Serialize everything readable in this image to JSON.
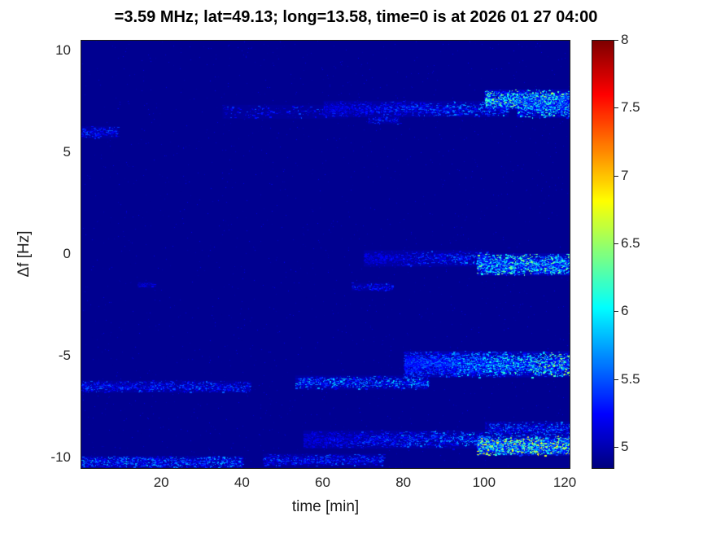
{
  "chart_data": {
    "type": "heatmap",
    "title": "=3.59 MHz;  lat=49.13; long=13.58, time=0 is at 2026 01 27 04:00",
    "xlabel": "time [min]",
    "ylabel": "Δf [Hz]",
    "xlim": [
      0,
      121
    ],
    "ylim": [
      -10.5,
      10.5
    ],
    "xticks": [
      20,
      40,
      60,
      80,
      100,
      120
    ],
    "yticks": [
      10,
      5,
      0,
      -5,
      -10
    ],
    "colorbar": {
      "range": [
        4.85,
        8
      ],
      "ticks": [
        5,
        5.5,
        6,
        6.5,
        7,
        7.5,
        8
      ],
      "colormap": "jet",
      "position": "right"
    },
    "grid": false,
    "legend": false,
    "background_value": 4.9,
    "noise": {
      "count": 2200,
      "vmin": 4.88,
      "vmax": 5.18
    },
    "bands": [
      {
        "y": 6.0,
        "spread": 0.3,
        "x0": 0,
        "x1": 9,
        "density": 30,
        "vmin": 5.0,
        "vmax": 5.55,
        "ramp": false
      },
      {
        "y": 7.0,
        "spread": 0.35,
        "x0": 35,
        "x1": 66,
        "density": 8,
        "vmin": 4.95,
        "vmax": 5.5,
        "ramp": false
      },
      {
        "y": 7.15,
        "spread": 0.4,
        "x0": 60,
        "x1": 106,
        "density": 28,
        "vmin": 5.05,
        "vmax": 6.0,
        "ramp": true
      },
      {
        "y": 6.6,
        "spread": 0.2,
        "x0": 71,
        "x1": 79,
        "density": 12,
        "vmin": 5.0,
        "vmax": 5.5,
        "ramp": false
      },
      {
        "y": 7.6,
        "spread": 0.5,
        "x0": 100,
        "x1": 121,
        "density": 85,
        "vmin": 5.2,
        "vmax": 6.6,
        "ramp": false
      },
      {
        "y": 7.2,
        "spread": 0.5,
        "x0": 108,
        "x1": 121,
        "density": 55,
        "vmin": 5.15,
        "vmax": 6.3,
        "ramp": false
      },
      {
        "y": -1.5,
        "spread": 0.15,
        "x0": 14,
        "x1": 18,
        "density": 10,
        "vmin": 4.95,
        "vmax": 5.3,
        "ramp": false
      },
      {
        "y": -1.6,
        "spread": 0.2,
        "x0": 67,
        "x1": 77,
        "density": 14,
        "vmin": 5.0,
        "vmax": 5.5,
        "ramp": false
      },
      {
        "y": -0.2,
        "spread": 0.4,
        "x0": 70,
        "x1": 101,
        "density": 22,
        "vmin": 5.05,
        "vmax": 5.85,
        "ramp": true
      },
      {
        "y": -0.5,
        "spread": 0.55,
        "x0": 98,
        "x1": 121,
        "density": 85,
        "vmin": 5.2,
        "vmax": 6.5,
        "ramp": false
      },
      {
        "y": -6.5,
        "spread": 0.3,
        "x0": 0,
        "x1": 42,
        "density": 28,
        "vmin": 5.0,
        "vmax": 5.6,
        "ramp": false
      },
      {
        "y": -6.3,
        "spread": 0.35,
        "x0": 53,
        "x1": 86,
        "density": 30,
        "vmin": 5.05,
        "vmax": 5.95,
        "ramp": false
      },
      {
        "y": -5.4,
        "spread": 0.65,
        "x0": 80,
        "x1": 121,
        "density": 90,
        "vmin": 5.2,
        "vmax": 6.7,
        "ramp": true
      },
      {
        "y": -9.1,
        "spread": 0.45,
        "x0": 55,
        "x1": 100,
        "density": 32,
        "vmin": 5.05,
        "vmax": 6.0,
        "ramp": true
      },
      {
        "y": -9.4,
        "spread": 0.5,
        "x0": 98,
        "x1": 121,
        "density": 110,
        "vmin": 5.25,
        "vmax": 6.9,
        "ramp": false
      },
      {
        "y": -8.6,
        "spread": 0.4,
        "x0": 100,
        "x1": 121,
        "density": 30,
        "vmin": 5.05,
        "vmax": 5.8,
        "ramp": false
      },
      {
        "y": -10.2,
        "spread": 0.3,
        "x0": 0,
        "x1": 40,
        "density": 40,
        "vmin": 5.0,
        "vmax": 5.8,
        "ramp": false
      },
      {
        "y": -10.1,
        "spread": 0.3,
        "x0": 45,
        "x1": 75,
        "density": 30,
        "vmin": 5.0,
        "vmax": 5.6,
        "ramp": false
      }
    ]
  }
}
